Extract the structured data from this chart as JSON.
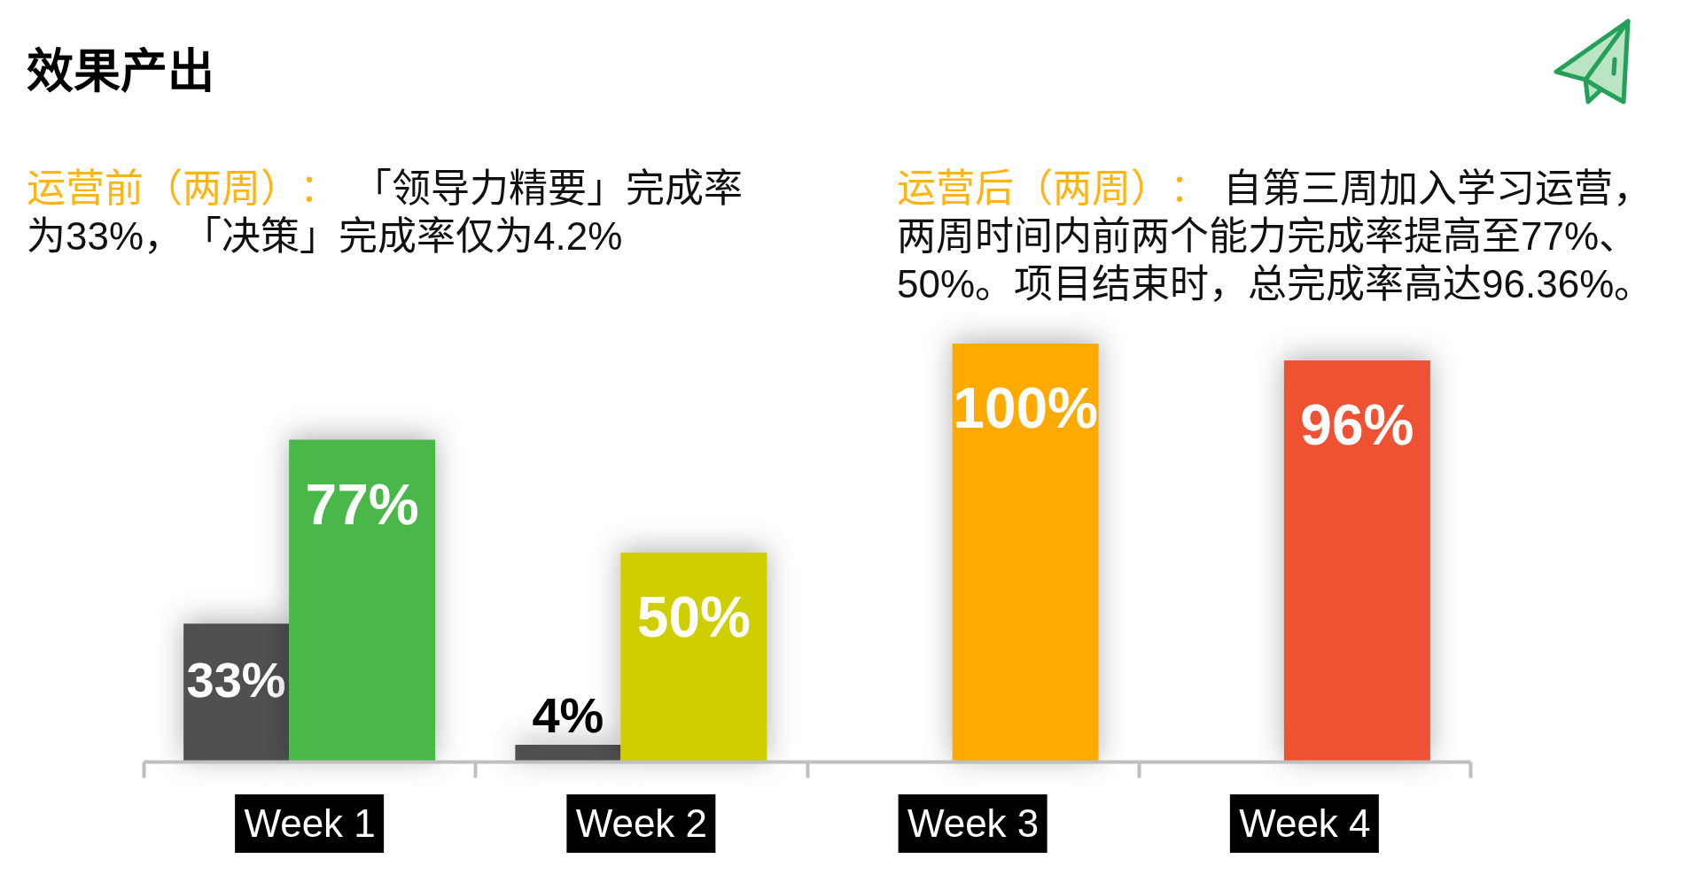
{
  "chart_data": {
    "type": "bar",
    "title": "效果产出",
    "annotations": [
      "运营前（两周）：「领导力精要」完成率为33%，「决策」完成率仅为4.2%",
      "运营后（两周）：自第三周加入学习运营，两周时间内前两个能力完成率提高至77%、50%。项目结束时，总完成率高达96.36%。"
    ],
    "categories": [
      "Week 1",
      "Week 2",
      "Week 3",
      "Week 4"
    ],
    "series": [
      {
        "color": "#505050",
        "values": [
          33,
          4,
          null,
          null
        ],
        "value_labels": [
          "33%",
          "4%",
          null,
          null
        ]
      },
      {
        "colors": [
          "#49b848",
          "#cfcf00",
          "#ffaa00",
          "#ee5233"
        ],
        "values": [
          77,
          50,
          100,
          96
        ],
        "value_labels": [
          "77%",
          "50%",
          "100%",
          "96%"
        ]
      }
    ]
  }
}
